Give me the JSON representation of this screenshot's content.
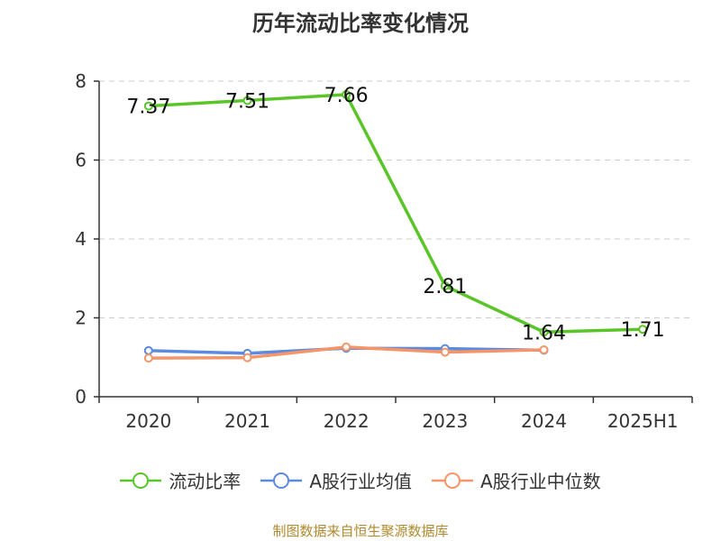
{
  "chart_data": {
    "type": "line",
    "title": "历年流动比率变化情况",
    "categories": [
      "2020",
      "2021",
      "2022",
      "2023",
      "2024",
      "2025H1"
    ],
    "ylim": [
      0,
      8
    ],
    "yticks": [
      0,
      2,
      4,
      6,
      8
    ],
    "grid": true,
    "legend_position": "bottom",
    "series": [
      {
        "name": "流动比率",
        "color": "#5ac528",
        "values": [
          7.37,
          7.51,
          7.66,
          2.81,
          1.64,
          1.71
        ],
        "labels": [
          "7.37",
          "7.51",
          "7.66",
          "2.81",
          "1.64",
          "1.71"
        ],
        "show_labels": true
      },
      {
        "name": "A股行业均值",
        "color": "#5b8ae0",
        "values": [
          1.17,
          1.1,
          1.23,
          1.22,
          1.18,
          null
        ],
        "show_labels": false
      },
      {
        "name": "A股行业中位数",
        "color": "#f59568",
        "values": [
          0.98,
          0.99,
          1.26,
          1.13,
          1.19,
          null
        ],
        "show_labels": false
      }
    ]
  },
  "source": "制图数据来自恒生聚源数据库"
}
